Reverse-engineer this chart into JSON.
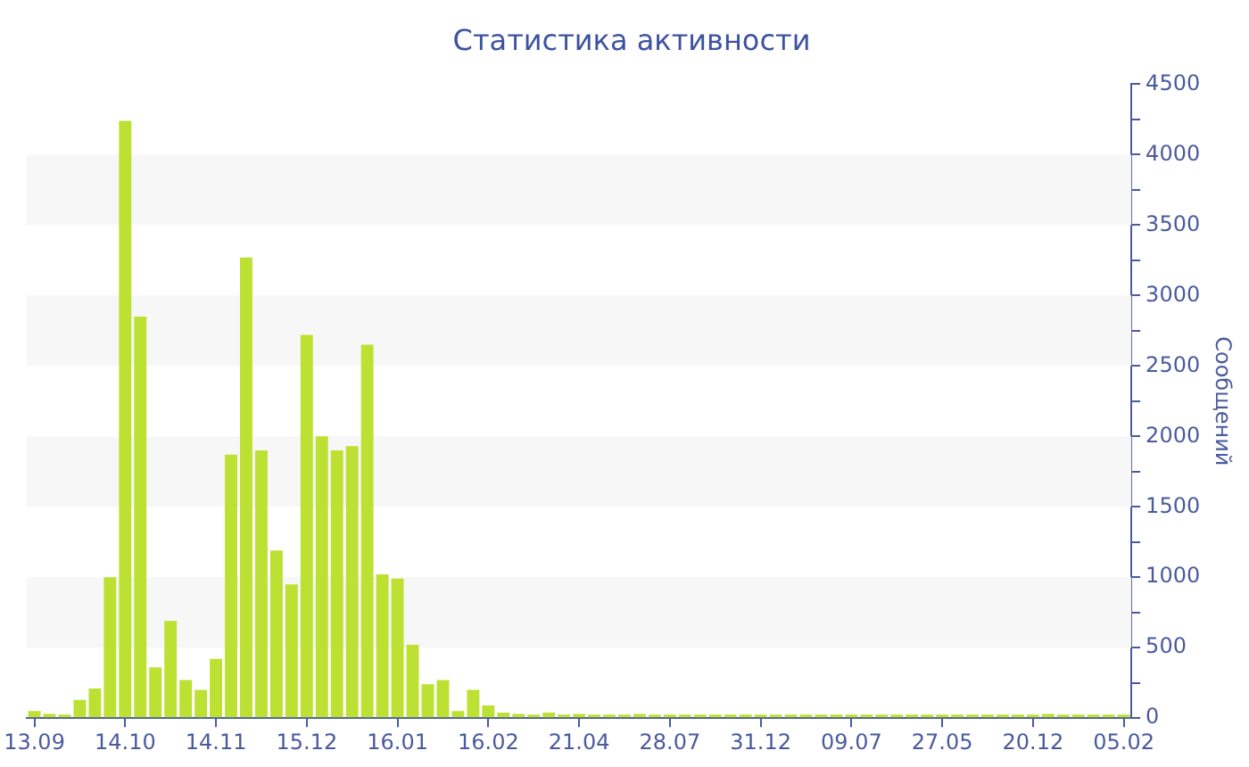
{
  "chart_data": {
    "type": "bar",
    "title": "Статистика активности",
    "y2label": "Сообщений",
    "categories": [
      "13.09",
      null,
      null,
      null,
      null,
      null,
      "14.10",
      null,
      null,
      null,
      null,
      null,
      "14.11",
      null,
      null,
      null,
      null,
      null,
      "15.12",
      null,
      null,
      null,
      null,
      null,
      "16.01",
      null,
      null,
      null,
      null,
      null,
      "16.02",
      null,
      null,
      null,
      null,
      null,
      "21.04",
      null,
      null,
      null,
      null,
      null,
      "28.07",
      null,
      null,
      null,
      null,
      null,
      "31.12",
      null,
      null,
      null,
      null,
      null,
      "09.07",
      null,
      null,
      null,
      null,
      null,
      "27.05",
      null,
      null,
      null,
      null,
      null,
      "20.12",
      null,
      null,
      null,
      null,
      null,
      "05.02"
    ],
    "series": [
      {
        "color": "#bce133",
        "axis": "y2",
        "values": [
          50,
          30,
          20,
          130,
          210,
          1000,
          4240,
          2850,
          360,
          690,
          270,
          200,
          420,
          1870,
          3270,
          1900,
          1190,
          950,
          2720,
          2000,
          1900,
          1930,
          2650,
          1020,
          990,
          520,
          240,
          270,
          50,
          200,
          90,
          40,
          30,
          20,
          40,
          20,
          30,
          20,
          20,
          20,
          30,
          20,
          20,
          20,
          20,
          20,
          20,
          20,
          20,
          20,
          20,
          20,
          20,
          20,
          20,
          20,
          20,
          20,
          20,
          20,
          20,
          20,
          20,
          20,
          20,
          20,
          20,
          30,
          20,
          20,
          20,
          20,
          20
        ]
      }
    ],
    "y2lim": [
      0,
      4500
    ],
    "y2ticks": [
      0,
      {
        "value": 250,
        "label": null
      },
      500,
      {
        "value": 750,
        "label": null
      },
      1000,
      {
        "value": 1250,
        "label": null
      },
      1500,
      {
        "value": 1750,
        "label": null
      },
      2000,
      {
        "value": 2250,
        "label": null
      },
      2500,
      {
        "value": 2750,
        "label": null
      },
      3000,
      {
        "value": 3250,
        "label": null
      },
      3500,
      {
        "value": 3750,
        "label": null
      },
      4000,
      {
        "value": 4250,
        "label": null
      },
      4500
    ],
    "bands": [
      {
        "axis": "y2",
        "from": 500,
        "to": 1000,
        "color": "#f7f7f7"
      },
      {
        "axis": "y2",
        "from": 1500,
        "to": 2000,
        "color": "#f7f7f7"
      },
      {
        "axis": "y2",
        "from": 2500,
        "to": 3000,
        "color": "#f7f7f7"
      },
      {
        "axis": "y2",
        "from": 3500,
        "to": 4000,
        "color": "#f7f7f7"
      }
    ],
    "grid": false,
    "legend": false
  }
}
